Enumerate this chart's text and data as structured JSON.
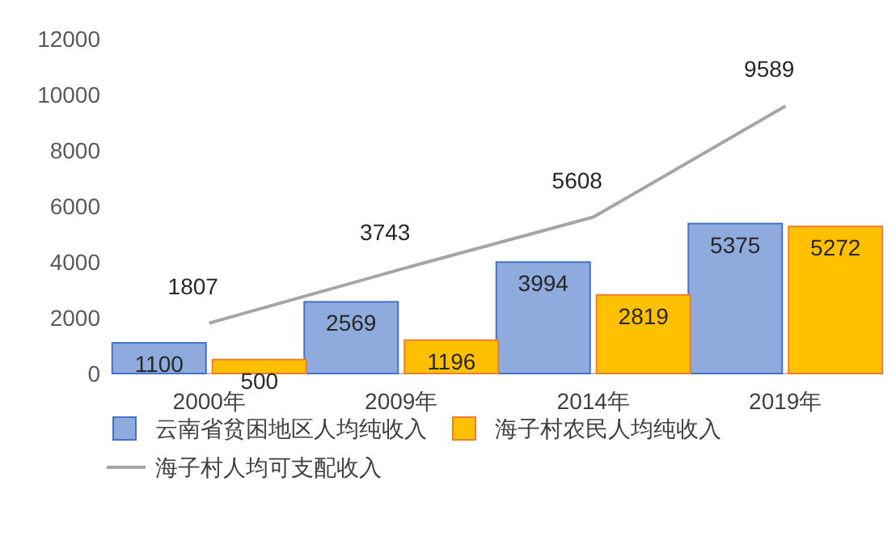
{
  "chart_data": {
    "type": "bar",
    "categories": [
      "2000年",
      "2009年",
      "2014年",
      "2019年"
    ],
    "series": [
      {
        "name": "云南省贫困地区人均纯收入",
        "color": "#8faadc",
        "values": [
          1100,
          2569,
          3994,
          5375
        ]
      },
      {
        "name": "海子村农民人均纯收入",
        "color": "#ffc000",
        "values": [
          500,
          1196,
          2819,
          5272
        ]
      },
      {
        "name": "海子村人均可支配收入",
        "type": "line",
        "color": "#a5a5a5",
        "values": [
          1807,
          3743,
          5608,
          9589
        ]
      }
    ],
    "ylim": [
      0,
      12000
    ],
    "yticks": [
      0,
      2000,
      4000,
      6000,
      8000,
      10000,
      12000
    ],
    "data_labels": true,
    "legend": "bottom",
    "marker": "none",
    "line_style": "solid"
  }
}
